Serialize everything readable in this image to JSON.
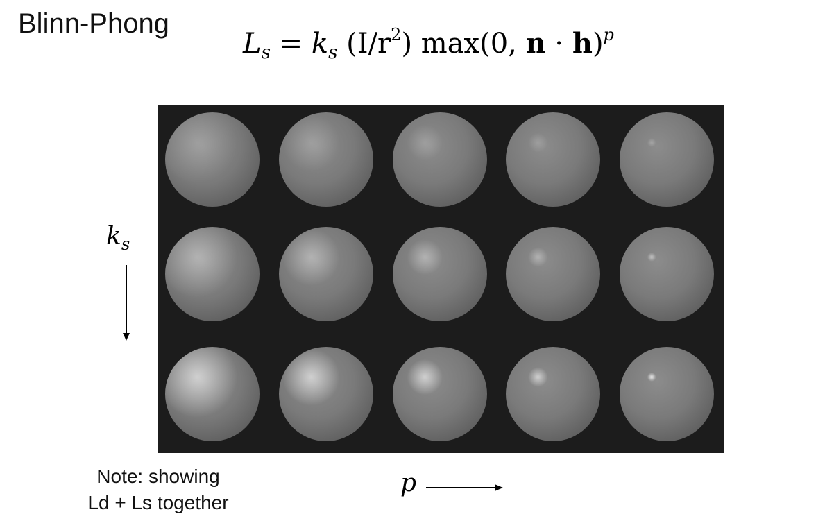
{
  "slide": {
    "title": "Blinn-Phong",
    "formula": {
      "lhs": "L",
      "lhs_sub": "s",
      "eq": " = ",
      "k": "k",
      "k_sub": "s",
      "term1": " (I/r",
      "term1_sup": "2",
      "term1_close": ") max(0, ",
      "n": "n",
      "dot": " · ",
      "h": "h",
      "close": ")",
      "exp": "p"
    },
    "ks_label": {
      "main": "k",
      "sub": "s"
    },
    "p_label": "p",
    "note": [
      "Note: showing",
      "Ld + Ls together"
    ]
  },
  "figure": {
    "background_color": "#1c1c1c",
    "sphere_color": "#7a7a7a"
  }
}
